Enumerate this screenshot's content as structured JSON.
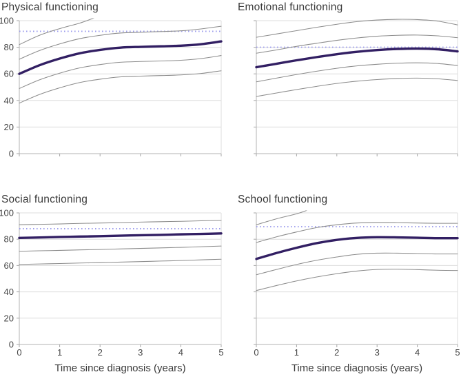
{
  "figure": {
    "x_axis_title": "Time since diagnosis (years)",
    "y_axis_range": [
      0,
      100
    ]
  },
  "colors": {
    "background": "#ffffff",
    "mean_line": "#321f63",
    "band_line": "#8c8c8c",
    "reference_line": "#9b9bec",
    "grid_line": "#dcdcdc",
    "axis_line": "#b3b3b3",
    "tick_mark": "#a6a6a6",
    "text": "#3a3a3a"
  },
  "chart_data": [
    {
      "type": "line",
      "title": "Physical functioning",
      "xlabel": "",
      "ylabel": "",
      "xlim": [
        0,
        5
      ],
      "ylim": [
        0,
        100
      ],
      "x_ticks": [
        0,
        1,
        2,
        3,
        4,
        5
      ],
      "x_tick_labels": [
        "0",
        "1",
        "2",
        "3",
        "4",
        "5"
      ],
      "y_ticks": [
        0,
        20,
        40,
        60,
        80,
        100
      ],
      "y_tick_labels": [
        "0",
        "20",
        "40",
        "60",
        "80",
        "100"
      ],
      "show_x_tick_labels": false,
      "show_y_tick_labels": true,
      "grid": "horizontal",
      "reference_value": 92,
      "reference_style": "dotted",
      "x": [
        0,
        0.5,
        1,
        1.5,
        2,
        2.5,
        3,
        3.5,
        4,
        4.5,
        5
      ],
      "series": [
        {
          "name": "upper-outer-band",
          "style": "thin-gray",
          "x": [
            0,
            0.5,
            1,
            1.5,
            1.85
          ],
          "values": [
            82,
            89,
            94,
            98.2,
            102
          ]
        },
        {
          "name": "upper-inner-band",
          "style": "thin-gray",
          "values": [
            71,
            77.5,
            82.5,
            86.5,
            89,
            90.7,
            91.3,
            91.8,
            92.4,
            93.8,
            95.8
          ]
        },
        {
          "name": "mean",
          "style": "thick-dark",
          "values": [
            60,
            66.5,
            71.5,
            75.5,
            78,
            79.7,
            80.3,
            80.7,
            81.2,
            82.3,
            84.4
          ]
        },
        {
          "name": "lower-inner-band",
          "style": "thin-gray",
          "values": [
            49,
            55.5,
            60.5,
            64.5,
            67,
            68.7,
            69.3,
            69.7,
            70.2,
            71.5,
            73.8
          ]
        },
        {
          "name": "lower-outer-band",
          "style": "thin-gray",
          "values": [
            38,
            44.5,
            49.5,
            53.5,
            56,
            57.7,
            58.3,
            58.7,
            59.2,
            60.3,
            62.3
          ]
        }
      ]
    },
    {
      "type": "line",
      "title": "Emotional functioning",
      "xlabel": "",
      "ylabel": "",
      "xlim": [
        0,
        5
      ],
      "ylim": [
        0,
        100
      ],
      "x_ticks": [
        0,
        1,
        2,
        3,
        4,
        5
      ],
      "x_tick_labels": [
        "0",
        "1",
        "2",
        "3",
        "4",
        "5"
      ],
      "y_ticks": [
        0,
        20,
        40,
        60,
        80,
        100
      ],
      "y_tick_labels": [
        "0",
        "20",
        "40",
        "60",
        "80",
        "100"
      ],
      "show_x_tick_labels": false,
      "show_y_tick_labels": false,
      "grid": "horizontal",
      "reference_value": 80,
      "reference_style": "dotted",
      "x": [
        0,
        0.5,
        1,
        1.5,
        2,
        2.5,
        3,
        3.5,
        4,
        4.5,
        5
      ],
      "series": [
        {
          "name": "upper-outer-band",
          "style": "thin-gray",
          "values": [
            87.5,
            90,
            92.5,
            95,
            97.3,
            99.3,
            100.5,
            101,
            100.8,
            99.7,
            96.8
          ]
        },
        {
          "name": "upper-inner-band",
          "style": "thin-gray",
          "values": [
            75.5,
            78,
            80.7,
            83,
            85.2,
            87,
            88.3,
            89,
            89.2,
            88.6,
            87.2
          ]
        },
        {
          "name": "mean",
          "style": "thick-dark",
          "values": [
            65,
            67.6,
            70.2,
            72.6,
            74.8,
            76.6,
            77.9,
            78.7,
            79,
            78.5,
            76.9
          ]
        },
        {
          "name": "lower-inner-band",
          "style": "thin-gray",
          "values": [
            54,
            56.8,
            59.5,
            62,
            64.2,
            66,
            67.2,
            68,
            68.3,
            67.8,
            66.3
          ]
        },
        {
          "name": "lower-outer-band",
          "style": "thin-gray",
          "values": [
            43,
            45.6,
            48.2,
            50.6,
            52.8,
            54.5,
            55.7,
            56.5,
            56.8,
            56.3,
            55
          ]
        }
      ]
    },
    {
      "type": "line",
      "title": "Social functioning",
      "xlabel": "Time since diagnosis (years)",
      "ylabel": "",
      "xlim": [
        0,
        5
      ],
      "ylim": [
        0,
        100
      ],
      "x_ticks": [
        0,
        1,
        2,
        3,
        4,
        5
      ],
      "x_tick_labels": [
        "0",
        "1",
        "2",
        "3",
        "4",
        "5"
      ],
      "y_ticks": [
        0,
        20,
        40,
        60,
        80,
        100
      ],
      "y_tick_labels": [
        "0",
        "20",
        "40",
        "60",
        "80",
        "100"
      ],
      "show_x_tick_labels": true,
      "show_y_tick_labels": true,
      "grid": "horizontal",
      "reference_value": 88,
      "reference_style": "dotted",
      "x": [
        0,
        0.5,
        1,
        1.5,
        2,
        2.5,
        3,
        3.5,
        4,
        4.5,
        5
      ],
      "series": [
        {
          "name": "upper-inner-band",
          "style": "thin-gray",
          "values": [
            91,
            91.3,
            91.6,
            92,
            92.3,
            92.6,
            93,
            93.3,
            93.6,
            94,
            94.3
          ]
        },
        {
          "name": "mean",
          "style": "thick-dark",
          "values": [
            81,
            81.3,
            81.7,
            82,
            82.3,
            82.7,
            83,
            83.3,
            83.7,
            84,
            84.4
          ]
        },
        {
          "name": "lower-inner-band",
          "style": "thin-gray",
          "values": [
            70.8,
            71.2,
            71.5,
            71.9,
            72.2,
            72.6,
            73,
            73.4,
            73.8,
            74.3,
            74.8
          ]
        },
        {
          "name": "lower-outer-band",
          "style": "thin-gray",
          "values": [
            60.8,
            61.2,
            61.5,
            61.9,
            62.2,
            62.6,
            63,
            63.4,
            63.8,
            64.3,
            64.8
          ]
        }
      ]
    },
    {
      "type": "line",
      "title": "School functioning",
      "xlabel": "Time since diagnosis (years)",
      "ylabel": "",
      "xlim": [
        0,
        5
      ],
      "ylim": [
        0,
        100
      ],
      "x_ticks": [
        0,
        1,
        2,
        3,
        4,
        5
      ],
      "x_tick_labels": [
        "0",
        "1",
        "2",
        "3",
        "4",
        "5"
      ],
      "y_ticks": [
        0,
        20,
        40,
        60,
        80,
        100
      ],
      "y_tick_labels": [
        "0",
        "20",
        "40",
        "60",
        "80",
        "100"
      ],
      "show_x_tick_labels": true,
      "show_y_tick_labels": false,
      "grid": "horizontal",
      "reference_value": 89.5,
      "reference_style": "dotted",
      "x": [
        0,
        0.5,
        1,
        1.5,
        2,
        2.5,
        3,
        3.5,
        4,
        4.5,
        5
      ],
      "series": [
        {
          "name": "upper-outer-band",
          "style": "thin-gray",
          "x": [
            0,
            0.5,
            1,
            1.25
          ],
          "values": [
            91,
            95.5,
            99.3,
            101.8
          ]
        },
        {
          "name": "upper-inner-band",
          "style": "thin-gray",
          "values": [
            77.5,
            81.8,
            85.5,
            88.8,
            91,
            92.3,
            92.7,
            92.6,
            92.3,
            92.1,
            92.1
          ]
        },
        {
          "name": "mean",
          "style": "thick-dark",
          "values": [
            65,
            69.5,
            73.5,
            77,
            79.5,
            81,
            81.5,
            81.4,
            81.1,
            80.8,
            80.8
          ]
        },
        {
          "name": "lower-inner-band",
          "style": "thin-gray",
          "values": [
            53,
            57,
            60.8,
            64,
            66.5,
            68.5,
            69.4,
            69.4,
            69.1,
            68.8,
            68.8
          ]
        },
        {
          "name": "lower-outer-band",
          "style": "thin-gray",
          "values": [
            41,
            44.8,
            48.3,
            51.3,
            53.8,
            55.8,
            57,
            57.2,
            56.9,
            56.4,
            56.2
          ]
        }
      ]
    }
  ]
}
